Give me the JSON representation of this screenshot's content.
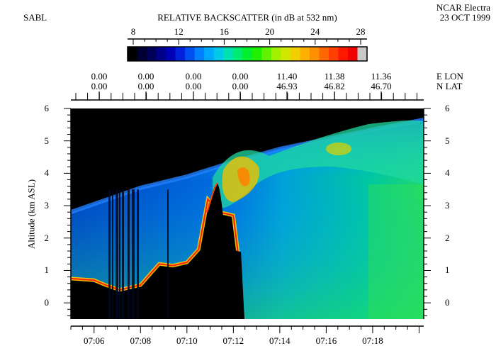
{
  "header": {
    "left_label": "SABL",
    "right_line1": "NCAR Electra",
    "right_line2": "23 OCT 1999"
  },
  "colorbar": {
    "title": "RELATIVE BACKSCATTER (in dB at 532 nm)",
    "ticks": [
      "8",
      "12",
      "16",
      "20",
      "24",
      "28"
    ],
    "min": 8,
    "max": 28,
    "colors": [
      "#000000",
      "#000033",
      "#00005a",
      "#000088",
      "#0000b4",
      "#0022dd",
      "#0050f0",
      "#0080ff",
      "#00a8ff",
      "#00c8e8",
      "#00e0b0",
      "#00ec70",
      "#00f030",
      "#20f000",
      "#60f000",
      "#a0f000",
      "#d0e800",
      "#f0d000",
      "#ffb000",
      "#ff9000",
      "#ff6800",
      "#ff4000",
      "#ff1800",
      "#f00000",
      "#c8c8c8"
    ]
  },
  "top_axis": {
    "lon_label": "E LON",
    "lat_label": "N LAT",
    "ticks": [
      {
        "lon": "0.00",
        "lat": "0.00"
      },
      {
        "lon": "0.00",
        "lat": "0.00"
      },
      {
        "lon": "0.00",
        "lat": "0.00"
      },
      {
        "lon": "0.00",
        "lat": "0.00"
      },
      {
        "lon": "11.40",
        "lat": "46.93"
      },
      {
        "lon": "11.38",
        "lat": "46.82"
      },
      {
        "lon": "11.36",
        "lat": "46.70"
      }
    ]
  },
  "chart_data": {
    "type": "heatmap",
    "title": "RELATIVE BACKSCATTER (in dB at 532 nm)",
    "ylabel": "Altitude (km ASL)",
    "xlabel": "",
    "ylim": [
      -0.5,
      6
    ],
    "yticks": [
      0,
      1,
      2,
      3,
      4,
      5,
      6
    ],
    "xlim_minutes": [
      425.0,
      440.2
    ],
    "xticks": [
      "07:06",
      "07:08",
      "07:10",
      "07:12",
      "07:14",
      "07:16",
      "07:18"
    ],
    "xtick_minutes": [
      426,
      428,
      430,
      432,
      434,
      436,
      438
    ],
    "color_scale_db": [
      8,
      28
    ],
    "top_of_signal_km": [
      [
        425.0,
        2.8
      ],
      [
        427.0,
        3.3
      ],
      [
        428.0,
        3.55
      ],
      [
        430.0,
        3.9
      ],
      [
        432.0,
        4.35
      ],
      [
        434.0,
        4.75
      ],
      [
        436.0,
        5.05
      ],
      [
        438.0,
        5.35
      ],
      [
        440.2,
        5.65
      ]
    ],
    "surface_return_km": [
      [
        425.0,
        0.75
      ],
      [
        426.0,
        0.7
      ],
      [
        426.5,
        0.55
      ],
      [
        427.1,
        0.4
      ],
      [
        428.0,
        0.55
      ],
      [
        428.8,
        1.2
      ],
      [
        429.4,
        1.15
      ],
      [
        430.0,
        1.25
      ],
      [
        430.5,
        1.65
      ],
      [
        430.9,
        3.2
      ],
      [
        431.4,
        2.8
      ],
      [
        432.0,
        2.7
      ],
      [
        432.2,
        1.55
      ]
    ]
  }
}
